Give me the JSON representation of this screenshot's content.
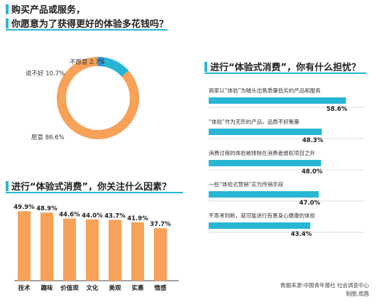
{
  "pie_section": {
    "title_line1": "购买产品或服务，",
    "title_line2": "你愿意为了获得更好的体验多花钱吗？"
  },
  "concerns_section": {
    "title": "进行“体验式消费”，你有什么担忧？"
  },
  "factors_section": {
    "title": "进行“体验式消费”，你关注什么因素？"
  },
  "footer": {
    "source": "数据来源:中国青年报社 社会调查中心",
    "credit": "制图:周茜"
  },
  "colors": {
    "orange": "#f7a159",
    "cyan": "#29b6d4",
    "blue": "#2f8fd6"
  },
  "chart_data": [
    {
      "type": "pie",
      "labels": [
        "不愿意",
        "说不好",
        "愿意"
      ],
      "label_texts": [
        "不愿意 2.7%",
        "说不好 10.7%",
        "愿意 86.6%"
      ],
      "values": [
        2.7,
        10.7,
        86.6
      ],
      "colors": [
        "#2f8fd6",
        "#29b6d4",
        "#f7a159"
      ],
      "donut": true
    },
    {
      "type": "bar",
      "orientation": "horizontal",
      "categories": [
        "商家以“体验”为噱头出售质量低劣的产品和服务",
        "“体验”作为无形的产品，品质不好衡量",
        "消费过程的体验被排除在消费者维权项目之外",
        "一些“体验式营销”实为传销手段",
        "不思考判断，就可能进行有害身心健康的体验"
      ],
      "values": [
        58.6,
        48.3,
        48.0,
        47.0,
        43.4
      ],
      "value_labels": [
        "58.6%",
        "48.3%",
        "48.0%",
        "47.0%",
        "43.4%"
      ],
      "xlim": [
        0,
        60
      ]
    },
    {
      "type": "bar",
      "orientation": "vertical",
      "categories": [
        "技术",
        "趣味",
        "价值观",
        "文化",
        "美观",
        "实惠",
        "情感"
      ],
      "values": [
        49.9,
        48.9,
        44.6,
        44.0,
        43.7,
        41.9,
        37.7
      ],
      "value_labels": [
        "49.9%",
        "48.9%",
        "44.6%",
        "44.0%",
        "43.7%",
        "41.9%",
        "37.7%"
      ],
      "ylim": [
        0,
        50
      ]
    }
  ]
}
